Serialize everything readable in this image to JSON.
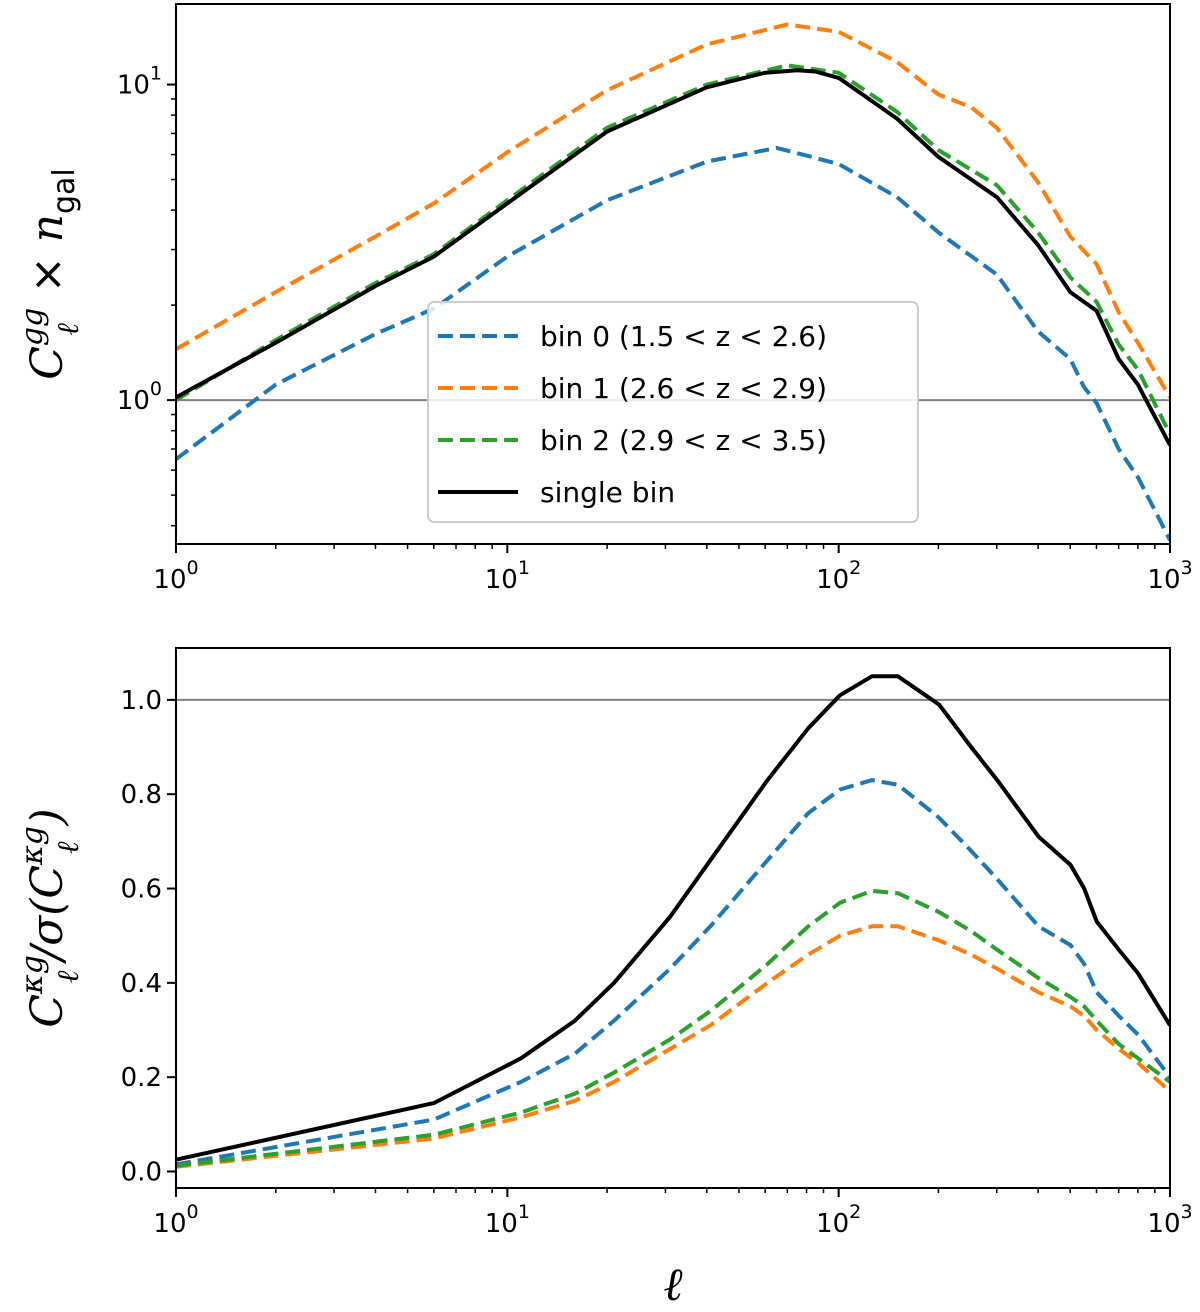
{
  "chart_data": [
    {
      "type": "line",
      "xscale": "log",
      "yscale": "log",
      "xlim": [
        1,
        1000
      ],
      "ylim": [
        0.35,
        18
      ],
      "ylabel": {
        "base": "C",
        "sup": "gg",
        "sub": "ℓ",
        "op": " × ",
        "var": "n",
        "var_sub": "gal"
      },
      "xticks": [
        1,
        10,
        100,
        1000
      ],
      "xtick_labels": [
        {
          "b": "10",
          "e": "0"
        },
        {
          "b": "10",
          "e": "1"
        },
        {
          "b": "10",
          "e": "2"
        },
        {
          "b": "10",
          "e": "3"
        }
      ],
      "yticks": [
        1,
        10
      ],
      "ytick_labels": [
        {
          "b": "10",
          "e": "0"
        },
        {
          "b": "10",
          "e": "1"
        }
      ],
      "reference_line": 1.0,
      "legend": {
        "placement": "center-left"
      },
      "series": [
        {
          "name": "bin 0 (1.5 < z < 2.6)",
          "color": "#1f77b4",
          "dash": true,
          "x": [
            1,
            2,
            4,
            6,
            10,
            20,
            40,
            65,
            100,
            150,
            200,
            300,
            400,
            500,
            550,
            600,
            700,
            800,
            1000
          ],
          "y": [
            0.65,
            1.12,
            1.62,
            1.95,
            2.85,
            4.3,
            5.7,
            6.3,
            5.6,
            4.4,
            3.4,
            2.5,
            1.65,
            1.35,
            1.1,
            0.98,
            0.7,
            0.57,
            0.36
          ]
        },
        {
          "name": "bin 1 (2.6 < z < 2.9)",
          "color": "#ff7f0e",
          "dash": true,
          "x": [
            1,
            2,
            4,
            6,
            10,
            20,
            40,
            70,
            100,
            150,
            200,
            250,
            300,
            400,
            500,
            600,
            700,
            800,
            1000
          ],
          "y": [
            1.45,
            2.2,
            3.3,
            4.2,
            6.1,
            9.6,
            13.4,
            15.5,
            14.7,
            11.8,
            9.3,
            8.5,
            7.3,
            4.9,
            3.3,
            2.7,
            1.9,
            1.52,
            1.02
          ]
        },
        {
          "name": "bin 2 (2.9 < z < 3.5)",
          "color": "#2ca02c",
          "dash": true,
          "x": [
            1,
            2,
            4,
            6,
            10,
            20,
            40,
            70,
            100,
            150,
            200,
            300,
            400,
            500,
            600,
            700,
            800,
            1000
          ],
          "y": [
            1.0,
            1.55,
            2.35,
            2.9,
            4.3,
            7.3,
            10.0,
            11.5,
            10.9,
            8.2,
            6.2,
            4.8,
            3.4,
            2.45,
            2.05,
            1.5,
            1.25,
            0.78
          ]
        },
        {
          "name": "single bin",
          "color": "#000000",
          "dash": false,
          "x": [
            1,
            2,
            4,
            6,
            10,
            20,
            40,
            60,
            75,
            85,
            100,
            150,
            200,
            300,
            400,
            500,
            600,
            700,
            800,
            1000
          ],
          "y": [
            1.02,
            1.52,
            2.3,
            2.85,
            4.2,
            7.1,
            9.8,
            10.9,
            11.1,
            11.0,
            10.5,
            7.8,
            5.9,
            4.4,
            3.1,
            2.2,
            1.92,
            1.35,
            1.12,
            0.72
          ]
        }
      ]
    },
    {
      "type": "line",
      "xscale": "log",
      "yscale": "linear",
      "xlim": [
        1,
        1000
      ],
      "ylim": [
        -0.035,
        1.11
      ],
      "xlabel": "ℓ",
      "ylabel": {
        "base": "C",
        "sup": "κg",
        "sub": "ℓ",
        "op": "/σ(",
        "base2": "C",
        "sup2": "κg",
        "sub2": "ℓ",
        "close": ")"
      },
      "xticks": [
        1,
        10,
        100,
        1000
      ],
      "xtick_labels": [
        {
          "b": "10",
          "e": "0"
        },
        {
          "b": "10",
          "e": "1"
        },
        {
          "b": "10",
          "e": "2"
        },
        {
          "b": "10",
          "e": "3"
        }
      ],
      "yticks": [
        0.0,
        0.2,
        0.4,
        0.6,
        0.8,
        1.0
      ],
      "ytick_labels": [
        "0.0",
        "0.2",
        "0.4",
        "0.6",
        "0.8",
        "1.0"
      ],
      "reference_line": 1.0,
      "series": [
        {
          "name": "bin 0 (1.5 < z < 2.6)",
          "color": "#1f77b4",
          "dash": true,
          "x": [
            1,
            6,
            11,
            16,
            21,
            31,
            41,
            61,
            81,
            101,
            126,
            151,
            201,
            251,
            301,
            401,
            501,
            551,
            601,
            701,
            801,
            1000
          ],
          "y": [
            0.015,
            0.11,
            0.19,
            0.25,
            0.32,
            0.43,
            0.52,
            0.66,
            0.76,
            0.81,
            0.83,
            0.82,
            0.75,
            0.68,
            0.62,
            0.52,
            0.48,
            0.44,
            0.38,
            0.33,
            0.29,
            0.2
          ]
        },
        {
          "name": "bin 1 (2.6 < z < 2.9)",
          "color": "#ff7f0e",
          "dash": true,
          "x": [
            1,
            6,
            11,
            16,
            21,
            31,
            41,
            61,
            81,
            101,
            126,
            151,
            201,
            251,
            301,
            401,
            501,
            551,
            601,
            701,
            801,
            1000
          ],
          "y": [
            0.01,
            0.07,
            0.115,
            0.15,
            0.19,
            0.26,
            0.31,
            0.4,
            0.46,
            0.5,
            0.52,
            0.52,
            0.49,
            0.46,
            0.43,
            0.38,
            0.35,
            0.33,
            0.3,
            0.26,
            0.23,
            0.17
          ]
        },
        {
          "name": "bin 2 (2.9 < z < 3.5)",
          "color": "#2ca02c",
          "dash": true,
          "x": [
            1,
            6,
            11,
            16,
            21,
            31,
            41,
            61,
            81,
            101,
            126,
            151,
            201,
            251,
            301,
            401,
            501,
            551,
            601,
            701,
            801,
            1000
          ],
          "y": [
            0.012,
            0.078,
            0.125,
            0.165,
            0.21,
            0.28,
            0.34,
            0.44,
            0.52,
            0.57,
            0.595,
            0.59,
            0.55,
            0.51,
            0.47,
            0.41,
            0.37,
            0.35,
            0.32,
            0.27,
            0.24,
            0.19
          ]
        },
        {
          "name": "single bin",
          "color": "#000000",
          "dash": false,
          "x": [
            1,
            6,
            11,
            16,
            21,
            31,
            41,
            61,
            81,
            101,
            126,
            151,
            201,
            251,
            301,
            401,
            501,
            551,
            601,
            701,
            801,
            1000
          ],
          "y": [
            0.025,
            0.145,
            0.24,
            0.32,
            0.4,
            0.54,
            0.66,
            0.83,
            0.94,
            1.01,
            1.05,
            1.05,
            0.99,
            0.9,
            0.83,
            0.71,
            0.65,
            0.6,
            0.53,
            0.47,
            0.42,
            0.31
          ]
        }
      ]
    }
  ]
}
